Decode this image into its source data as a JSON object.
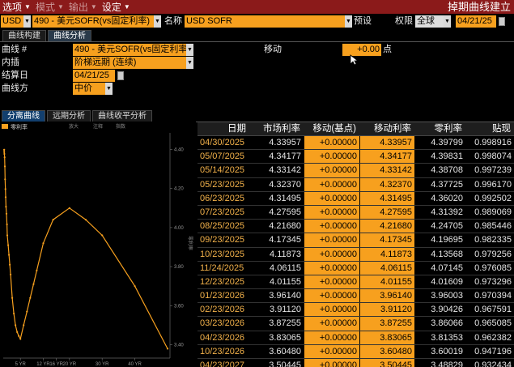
{
  "menubar": {
    "items": [
      {
        "label": "选项",
        "dim": false
      },
      {
        "label": "模式",
        "dim": true
      },
      {
        "label": "输出",
        "dim": true
      },
      {
        "label": "设定",
        "dim": false
      }
    ],
    "title": "掉期曲线建立"
  },
  "toolbar": {
    "currency": "USD",
    "curve_select": "490 - 美元SOFR(vs固定利率)",
    "name_label": "名称",
    "name_value": "USD SOFR",
    "preset_label": "预设",
    "permission_label": "权限",
    "permission_value": "全球",
    "date_value": "04/21/25"
  },
  "main_tabs": [
    "曲线构建",
    "曲线分析"
  ],
  "form": {
    "curve_label": "曲线 #",
    "curve_value": "490 - 美元SOFR(vs固定利率",
    "interp_label": "内插",
    "interp_value": "阶梯远期 (连续)",
    "settle_label": "结算日",
    "settle_value": "04/21/25",
    "curve_side_label": "曲线方",
    "curve_side_value": "中价",
    "move_label": "移动",
    "move_value": "+0.00",
    "move_unit": "点"
  },
  "sub_tabs": [
    "分离曲线",
    "远期分析",
    "曲线收平分析"
  ],
  "chart_toolbar": {
    "legend": "零利率",
    "tools": [
      "放大",
      "注释",
      "指数"
    ]
  },
  "chart_data": {
    "type": "line",
    "series": [
      {
        "name": "零利率",
        "x": [
          0.02,
          0.04,
          0.06,
          0.09,
          0.17,
          0.25,
          0.33,
          0.42,
          0.5,
          0.6,
          0.75,
          0.9,
          1.0,
          1.25,
          1.5,
          1.75,
          2,
          2.5,
          3,
          3.5,
          4,
          4.5,
          5,
          6,
          7,
          8,
          9,
          10,
          12,
          15,
          20,
          25,
          30,
          40,
          50
        ],
        "y": [
          4.398,
          4.398,
          4.387,
          4.377,
          4.36,
          4.313,
          4.247,
          4.197,
          4.156,
          4.107,
          4.071,
          4.016,
          3.96,
          3.91,
          3.86,
          3.81,
          3.76,
          3.64,
          3.56,
          3.5,
          3.465,
          3.445,
          3.43,
          3.5,
          3.57,
          3.64,
          3.71,
          3.78,
          3.92,
          4.04,
          4.1,
          4.04,
          3.96,
          3.7,
          3.38
        ]
      }
    ],
    "x_ticks": [
      "5 YR",
      "12 YR",
      "16 YR",
      "20 YR",
      "30 YR",
      "40 YR"
    ],
    "x_tick_values": [
      5,
      12,
      16,
      20,
      30,
      40
    ],
    "y_ticks": [
      "4.40",
      "4.20",
      "4.00",
      "3.80",
      "3.60",
      "3.40"
    ],
    "y_tick_values": [
      4.4,
      4.2,
      4.0,
      3.8,
      3.6,
      3.4
    ],
    "xlim": [
      0,
      50
    ],
    "ylim": [
      3.34,
      4.46
    ],
    "ylabel": "零利率",
    "grid": false,
    "color": "#f7a01e"
  },
  "table": {
    "headers": [
      "日期",
      "市场利率",
      "移动(基点)",
      "移动利率",
      "零利率",
      "贴现"
    ],
    "rows": [
      [
        "04/30/2025",
        "4.33957",
        "+0.00000",
        "4.33957",
        "4.39799",
        "0.998916"
      ],
      [
        "05/07/2025",
        "4.34177",
        "+0.00000",
        "4.34177",
        "4.39831",
        "0.998074"
      ],
      [
        "05/14/2025",
        "4.33142",
        "+0.00000",
        "4.33142",
        "4.38708",
        "0.997239"
      ],
      [
        "05/23/2025",
        "4.32370",
        "+0.00000",
        "4.32370",
        "4.37725",
        "0.996170"
      ],
      [
        "06/23/2025",
        "4.31495",
        "+0.00000",
        "4.31495",
        "4.36020",
        "0.992502"
      ],
      [
        "07/23/2025",
        "4.27595",
        "+0.00000",
        "4.27595",
        "4.31392",
        "0.989069"
      ],
      [
        "08/25/2025",
        "4.21680",
        "+0.00000",
        "4.21680",
        "4.24705",
        "0.985446"
      ],
      [
        "09/23/2025",
        "4.17345",
        "+0.00000",
        "4.17345",
        "4.19695",
        "0.982335"
      ],
      [
        "10/23/2025",
        "4.11873",
        "+0.00000",
        "4.11873",
        "4.13568",
        "0.979256"
      ],
      [
        "11/24/2025",
        "4.06115",
        "+0.00000",
        "4.06115",
        "4.07145",
        "0.976085"
      ],
      [
        "12/23/2025",
        "4.01155",
        "+0.00000",
        "4.01155",
        "4.01609",
        "0.973296"
      ],
      [
        "01/23/2026",
        "3.96140",
        "+0.00000",
        "3.96140",
        "3.96003",
        "0.970394"
      ],
      [
        "02/23/2026",
        "3.91120",
        "+0.00000",
        "3.91120",
        "3.90426",
        "0.967591"
      ],
      [
        "03/23/2026",
        "3.87255",
        "+0.00000",
        "3.87255",
        "3.86066",
        "0.965085"
      ],
      [
        "04/23/2026",
        "3.83065",
        "+0.00000",
        "3.83065",
        "3.81353",
        "0.962382"
      ],
      [
        "10/23/2026",
        "3.60480",
        "+0.00000",
        "3.60480",
        "3.60019",
        "0.947196"
      ],
      [
        "04/23/2027",
        "3.50445",
        "+0.00000",
        "3.50445",
        "3.48829",
        "0.932434"
      ]
    ]
  },
  "colors": {
    "accent": "#f7a01e",
    "menubar": "#8b1a1a",
    "date_text": "#f2b14a"
  }
}
